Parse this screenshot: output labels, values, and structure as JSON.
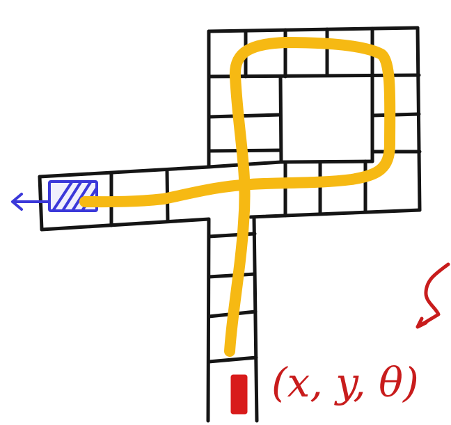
{
  "colors": {
    "grid": "#151515",
    "path": "#f6b913",
    "goal": "#3b38d9",
    "robot": "#d81b1b",
    "pose_label": "#c81c1c"
  },
  "icons": {
    "goal": "hatched-rectangle-goal-icon",
    "goal_arrow": "left-arrow-icon",
    "robot": "red-car-rectangle-icon",
    "pose_arrow": "down-left-arrow-icon"
  },
  "labels": {
    "pose": "(x, y, θ)"
  }
}
